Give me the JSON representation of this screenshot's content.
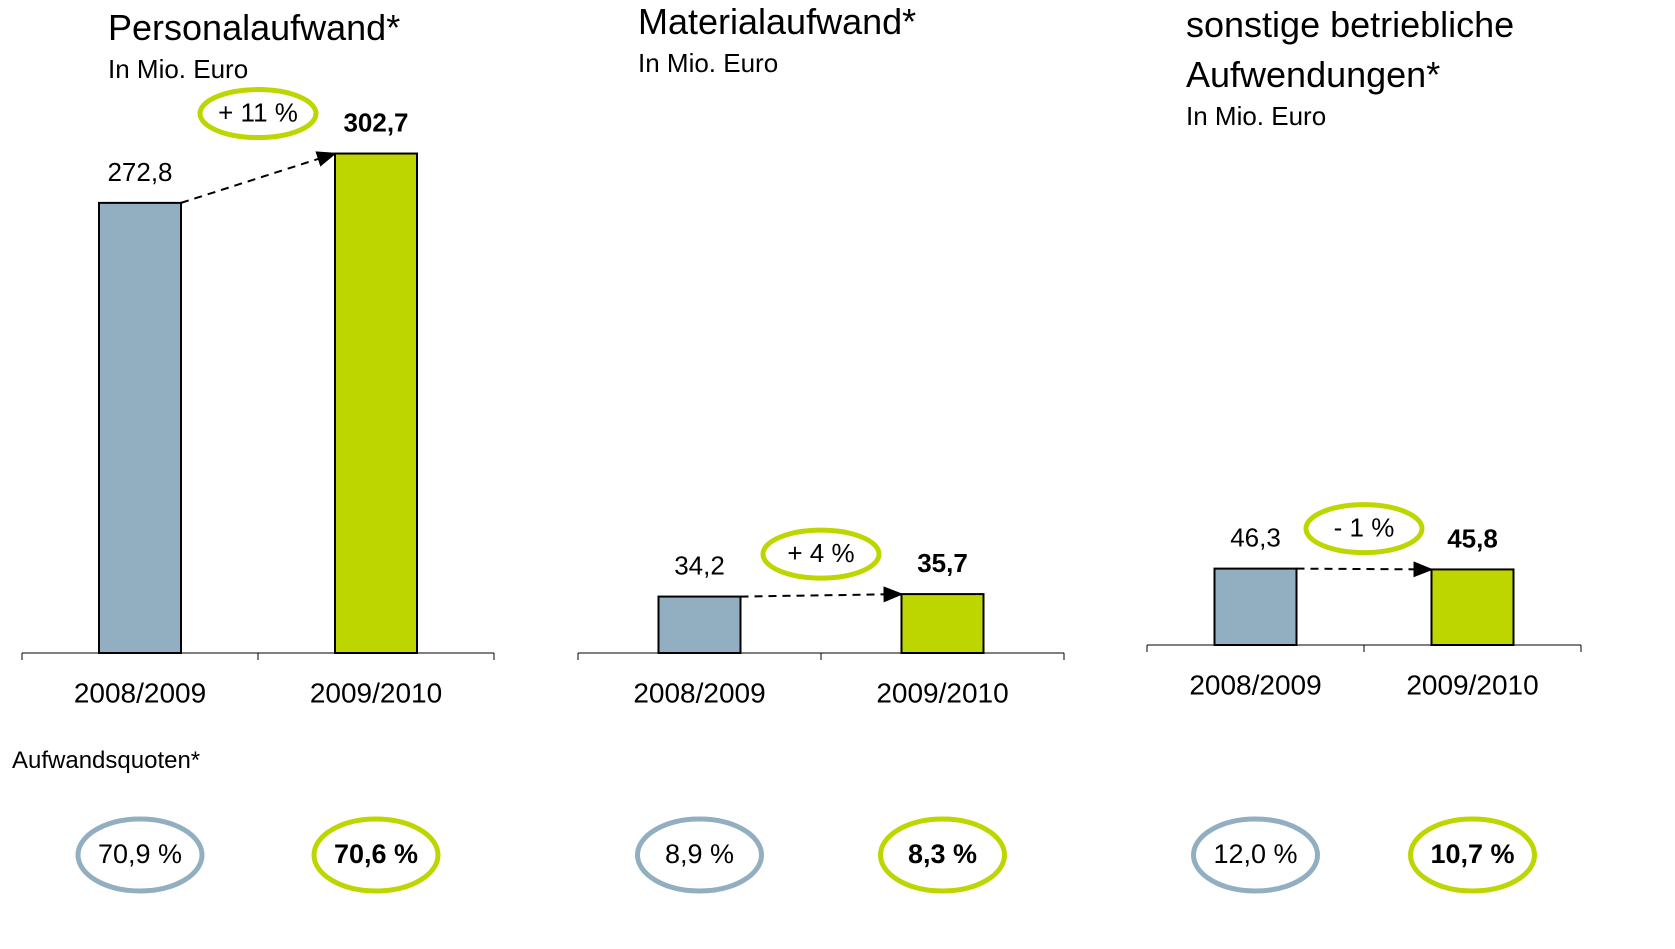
{
  "chart_data": [
    {
      "type": "bar",
      "title": "Personalaufwand*",
      "subtitle": "In Mio. Euro",
      "categories": [
        "2008/2009",
        "2009/2010"
      ],
      "values": [
        272.8,
        302.7
      ],
      "value_labels": [
        "272,8",
        "302,7"
      ],
      "colors": [
        "#91afc0",
        "#bed600"
      ],
      "change": "+ 11 %",
      "ratios": [
        70.9,
        70.6
      ],
      "ratio_labels": [
        "70,9 %",
        "70,6 %"
      ]
    },
    {
      "type": "bar",
      "title": "Materialaufwand*",
      "subtitle": "In Mio. Euro",
      "categories": [
        "2008/2009",
        "2009/2010"
      ],
      "values": [
        34.2,
        35.7
      ],
      "value_labels": [
        "34,2",
        "35,7"
      ],
      "colors": [
        "#91afc0",
        "#bed600"
      ],
      "change": "+ 4 %",
      "ratios": [
        8.9,
        8.3
      ],
      "ratio_labels": [
        "8,9 %",
        "8,3 %"
      ]
    },
    {
      "type": "bar",
      "title": "sonstige betriebliche Aufwendungen*",
      "subtitle": "In Mio. Euro",
      "categories": [
        "2008/2009",
        "2009/2010"
      ],
      "values": [
        46.3,
        45.8
      ],
      "value_labels": [
        "46,3",
        "45,8"
      ],
      "colors": [
        "#91afc0",
        "#bed600"
      ],
      "change": "- 1 %",
      "ratios": [
        12.0,
        10.7
      ],
      "ratio_labels": [
        "12,0 %",
        "10,7 %"
      ]
    }
  ],
  "ratio_title": "Aufwandsquoten*"
}
